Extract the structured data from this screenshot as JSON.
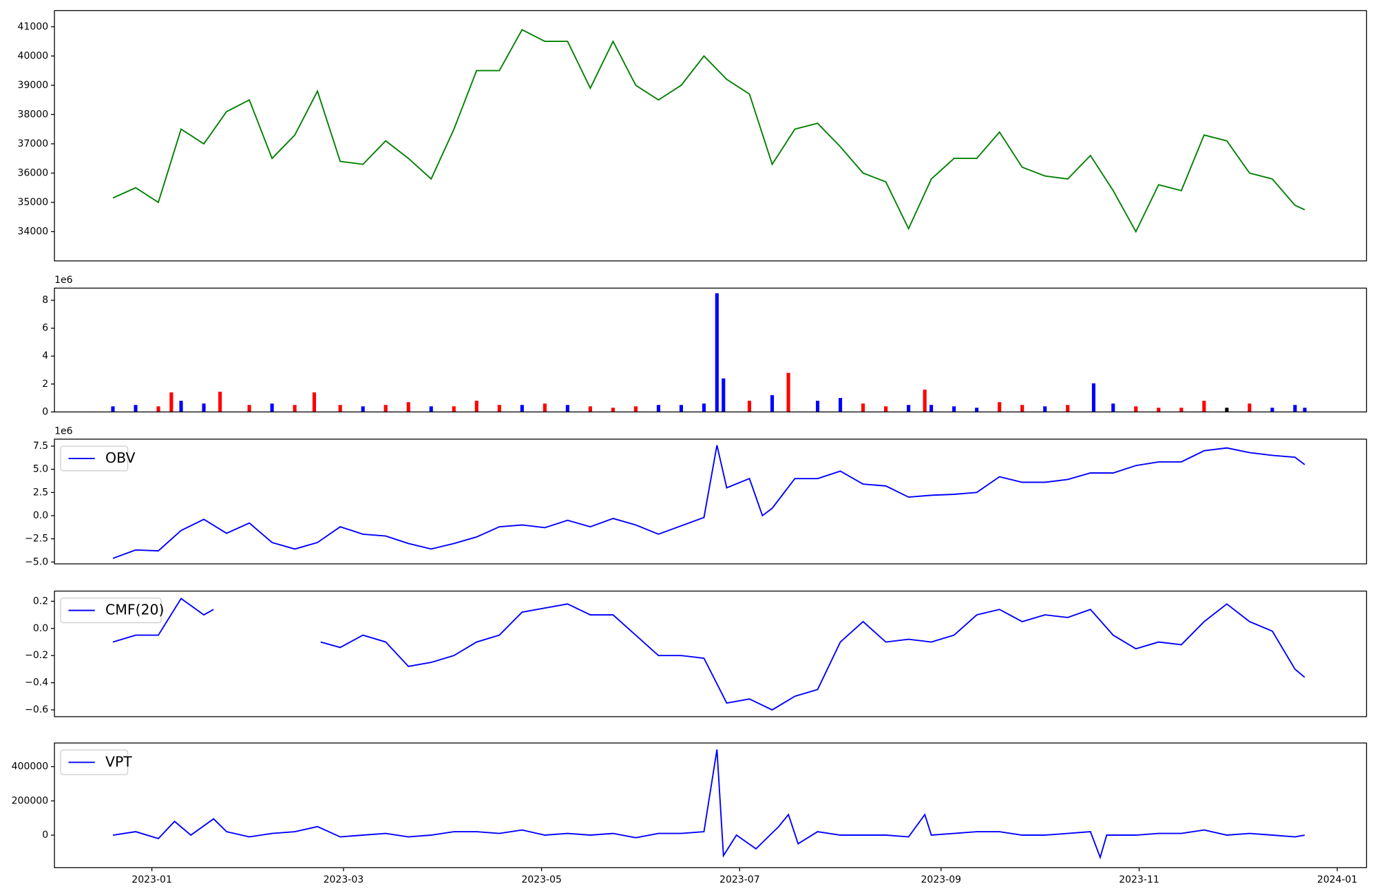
{
  "chart_data": [
    {
      "type": "line",
      "color": "green",
      "xlim": [
        -30,
        374
      ],
      "ylim": [
        33000,
        41550
      ],
      "yticks": [
        34000,
        35000,
        36000,
        37000,
        38000,
        39000,
        40000,
        41000
      ],
      "x": [
        -12,
        -5,
        2,
        9,
        16,
        23,
        30,
        37,
        44,
        51,
        58,
        65,
        72,
        79,
        86,
        93,
        100,
        107,
        114,
        121,
        128,
        135,
        142,
        149,
        156,
        163,
        170,
        177,
        184,
        191,
        198,
        205,
        212,
        219,
        226,
        233,
        240,
        247,
        254,
        261,
        268,
        275,
        282,
        289,
        296,
        303,
        310,
        317,
        324,
        331,
        338,
        345,
        352,
        355
      ],
      "values": [
        35150,
        35500,
        35000,
        37500,
        37000,
        38100,
        38500,
        36500,
        37300,
        38800,
        36400,
        36300,
        37100,
        36500,
        35800,
        37500,
        39500,
        39500,
        40900,
        40500,
        40500,
        38900,
        40500,
        39000,
        38500,
        39000,
        40000,
        39200,
        38700,
        36300,
        37500,
        37700,
        36900,
        36000,
        35700,
        34100,
        35800,
        36500,
        36500,
        37400,
        36200,
        35900,
        35800,
        36600,
        35400,
        34000,
        35600,
        35400,
        37300,
        37100,
        36000,
        35800,
        34900,
        34750
      ]
    },
    {
      "type": "bar",
      "offset": "1e6",
      "xlim": [
        -30,
        374
      ],
      "ylim": [
        0,
        8.87
      ],
      "yticks": [
        0,
        2,
        4,
        6,
        8
      ],
      "x": [
        -12,
        -5,
        2,
        6,
        9,
        16,
        21,
        30,
        37,
        44,
        50,
        58,
        65,
        72,
        79,
        86,
        93,
        100,
        107,
        114,
        121,
        128,
        135,
        142,
        149,
        156,
        163,
        170,
        174,
        176,
        184,
        191,
        196,
        205,
        212,
        219,
        226,
        233,
        238,
        240,
        247,
        254,
        261,
        268,
        275,
        282,
        290,
        296,
        303,
        310,
        317,
        324,
        331,
        338,
        345,
        352,
        355
      ],
      "values": [
        0.4,
        0.5,
        0.4,
        1.4,
        0.8,
        0.6,
        1.45,
        0.5,
        0.6,
        0.5,
        1.4,
        0.5,
        0.4,
        0.5,
        0.7,
        0.4,
        0.4,
        0.8,
        0.5,
        0.5,
        0.6,
        0.5,
        0.4,
        0.3,
        0.4,
        0.5,
        0.5,
        0.6,
        8.5,
        2.4,
        0.8,
        1.2,
        2.8,
        0.8,
        1.0,
        0.6,
        0.4,
        0.5,
        1.6,
        0.5,
        0.4,
        0.3,
        0.7,
        0.5,
        0.4,
        0.5,
        2.05,
        0.6,
        0.4,
        0.3,
        0.3,
        0.8,
        0.3,
        0.6,
        0.3,
        0.5,
        0.3
      ],
      "colors": [
        "blue",
        "blue",
        "red",
        "red",
        "blue",
        "blue",
        "red",
        "red",
        "blue",
        "red",
        "red",
        "red",
        "blue",
        "red",
        "red",
        "blue",
        "red",
        "red",
        "red",
        "blue",
        "red",
        "blue",
        "red",
        "red",
        "red",
        "blue",
        "blue",
        "blue",
        "blue",
        "blue",
        "red",
        "blue",
        "red",
        "blue",
        "blue",
        "red",
        "red",
        "blue",
        "red",
        "blue",
        "blue",
        "blue",
        "red",
        "red",
        "blue",
        "red",
        "blue",
        "blue",
        "red",
        "red",
        "red",
        "red",
        "black",
        "red",
        "blue",
        "blue",
        "blue"
      ]
    },
    {
      "type": "line",
      "offset": "1e6",
      "legend": "upper left",
      "xlim": [
        -30,
        374
      ],
      "ylim": [
        -5.2,
        8.25
      ],
      "yticks": [
        {
          "value": -5,
          "label": "−5.0"
        },
        {
          "value": -2.5,
          "label": "−2.5"
        },
        {
          "value": 0,
          "label": "0.0"
        },
        2.5,
        {
          "value": 5,
          "label": "5.0"
        },
        7.5
      ],
      "x": [
        -12,
        -5,
        2,
        9,
        16,
        23,
        30,
        37,
        44,
        51,
        58,
        65,
        72,
        79,
        86,
        93,
        100,
        107,
        114,
        121,
        128,
        135,
        142,
        149,
        156,
        163,
        170,
        174,
        177,
        184,
        188,
        191,
        198,
        205,
        212,
        219,
        226,
        233,
        240,
        247,
        254,
        261,
        268,
        275,
        282,
        289,
        296,
        303,
        310,
        317,
        324,
        331,
        338,
        345,
        352,
        355
      ],
      "series": [
        {
          "name": "OBV",
          "color": "blue",
          "values": [
            -4.6,
            -3.7,
            -3.8,
            -1.6,
            -0.4,
            -1.9,
            -0.8,
            -2.9,
            -3.6,
            -2.9,
            -1.2,
            -2.0,
            -2.2,
            -3.0,
            -3.6,
            -3.0,
            -2.3,
            -1.2,
            -1.0,
            -1.3,
            -0.5,
            -1.2,
            -0.3,
            -1.0,
            -2.0,
            -1.1,
            -0.2,
            7.6,
            3.0,
            4.0,
            0.0,
            0.8,
            4.0,
            4.0,
            4.8,
            3.4,
            3.2,
            2.0,
            2.2,
            2.3,
            2.5,
            4.2,
            3.6,
            3.6,
            3.9,
            4.6,
            4.6,
            5.4,
            5.8,
            5.8,
            7.0,
            7.3,
            6.8,
            6.5,
            6.3,
            5.5
          ]
        }
      ]
    },
    {
      "type": "line",
      "legend": "upper left",
      "xlim": [
        -30,
        374
      ],
      "ylim": [
        -0.65,
        0.275
      ],
      "yticks": [
        {
          "value": -0.6,
          "label": "−0.6"
        },
        {
          "value": -0.4,
          "label": "−0.4"
        },
        {
          "value": -0.2,
          "label": "−0.2"
        },
        {
          "value": 0,
          "label": "0.0"
        },
        0.2
      ],
      "x": [
        -12,
        -5,
        2,
        9,
        16,
        19,
        23,
        52,
        58,
        65,
        72,
        79,
        86,
        93,
        100,
        107,
        114,
        121,
        128,
        135,
        142,
        149,
        156,
        163,
        170,
        177,
        184,
        191,
        198,
        205,
        212,
        219,
        226,
        233,
        240,
        247,
        254,
        261,
        268,
        275,
        282,
        289,
        296,
        303,
        310,
        317,
        324,
        331,
        338,
        345,
        352,
        355
      ],
      "series": [
        {
          "name": "CMF(20)",
          "color": "blue",
          "values": [
            -0.1,
            -0.05,
            -0.05,
            0.22,
            0.1,
            0.14,
            null,
            -0.1,
            -0.14,
            -0.05,
            -0.1,
            -0.28,
            -0.25,
            -0.2,
            -0.1,
            -0.05,
            0.12,
            0.15,
            0.18,
            0.1,
            0.1,
            -0.05,
            -0.2,
            -0.2,
            -0.22,
            -0.55,
            -0.52,
            -0.6,
            -0.5,
            -0.45,
            -0.1,
            0.05,
            -0.1,
            -0.08,
            -0.1,
            -0.05,
            0.1,
            0.14,
            0.05,
            0.1,
            0.08,
            0.14,
            -0.05,
            -0.15,
            -0.1,
            -0.12,
            0.05,
            0.18,
            0.05,
            -0.02,
            -0.3,
            -0.36
          ]
        }
      ]
    },
    {
      "type": "line",
      "legend": "upper left",
      "xlim": [
        -30,
        374
      ],
      "ylim": [
        -190000,
        538000
      ],
      "yticks": [
        0,
        200000,
        400000
      ],
      "xticks": [
        {
          "value": 0,
          "label": "2023-01"
        },
        {
          "value": 59,
          "label": "2023-03"
        },
        {
          "value": 120,
          "label": "2023-05"
        },
        {
          "value": 181,
          "label": "2023-07"
        },
        {
          "value": 243,
          "label": "2023-09"
        },
        {
          "value": 304,
          "label": "2023-11"
        },
        {
          "value": 365,
          "label": "2024-01"
        }
      ],
      "x": [
        -12,
        -5,
        2,
        7,
        12,
        19,
        23,
        30,
        37,
        44,
        51,
        58,
        65,
        72,
        79,
        86,
        93,
        100,
        107,
        114,
        121,
        128,
        135,
        142,
        149,
        156,
        163,
        170,
        174,
        176,
        180,
        186,
        193,
        196,
        199,
        205,
        212,
        219,
        226,
        233,
        238,
        240,
        247,
        254,
        261,
        268,
        275,
        282,
        289,
        292,
        294,
        303,
        310,
        317,
        324,
        331,
        338,
        345,
        352,
        355
      ],
      "series": [
        {
          "name": "VPT",
          "color": "blue",
          "values": [
            0,
            20000,
            -20000,
            80000,
            0,
            95000,
            20000,
            -10000,
            10000,
            20000,
            50000,
            -10000,
            0,
            10000,
            -10000,
            0,
            20000,
            20000,
            10000,
            30000,
            0,
            10000,
            0,
            10000,
            -15000,
            10000,
            10000,
            20000,
            500000,
            -120000,
            0,
            -80000,
            50000,
            120000,
            -50000,
            20000,
            0,
            0,
            0,
            -10000,
            120000,
            0,
            10000,
            20000,
            20000,
            0,
            0,
            10000,
            20000,
            -130000,
            0,
            0,
            10000,
            10000,
            30000,
            0,
            10000,
            0,
            -10000,
            0
          ]
        }
      ]
    }
  ]
}
